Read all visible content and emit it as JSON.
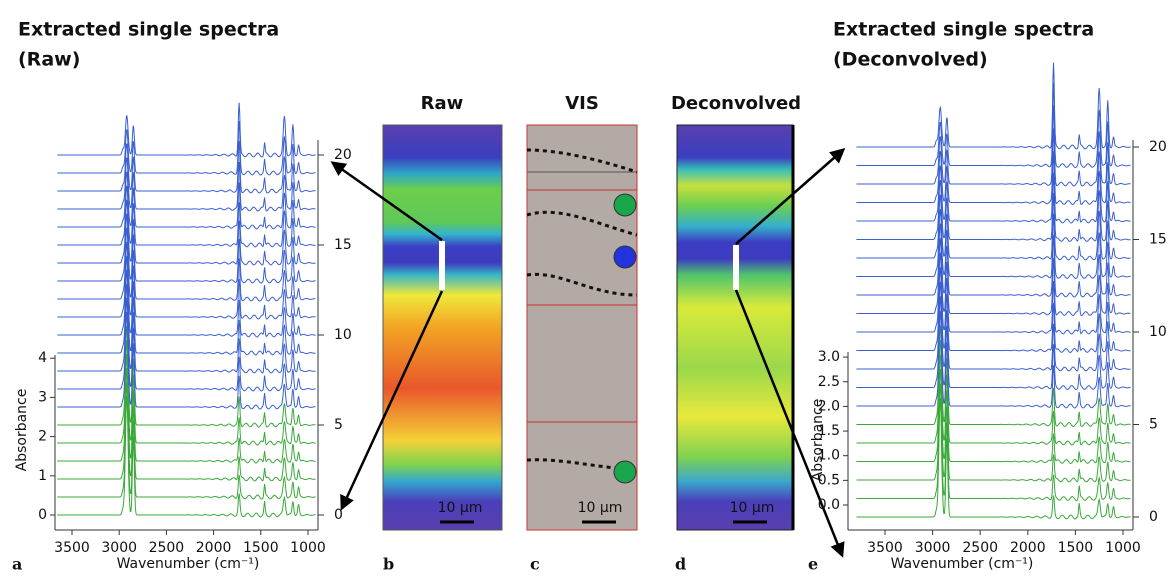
{
  "panels": [
    {
      "letter": "a",
      "title": "Extracted single spectra",
      "subtitle": "(Raw)",
      "x_axis": {
        "label": "Wavenumber (cm⁻¹)",
        "ticks": [
          3500,
          3000,
          2500,
          2000,
          1500,
          1000
        ]
      },
      "y_axis": {
        "label": "Absorbance",
        "ticks": [
          0,
          1,
          2,
          3,
          4
        ]
      },
      "y2_axis": {
        "ticks": [
          0,
          5,
          10,
          15,
          20
        ]
      }
    },
    {
      "letter": "b",
      "title": "Raw",
      "scale_bar": "10 µm"
    },
    {
      "letter": "c",
      "title": "VIS",
      "scale_bar": "10 µm"
    },
    {
      "letter": "d",
      "title": "Deconvolved",
      "scale_bar": "10 µm"
    },
    {
      "letter": "e",
      "title": "Extracted single spectra",
      "subtitle": "(Deconvolved)",
      "x_axis": {
        "label": "Wavenumber (cm⁻¹)",
        "ticks": [
          3500,
          3000,
          2500,
          2000,
          1500,
          1000
        ]
      },
      "y_axis": {
        "label": "Absorbance",
        "ticks": [
          {
            "value": 0,
            "label": "0.0"
          },
          0.5,
          {
            "value": 1,
            "label": "1.0"
          },
          1.5,
          {
            "value": 2,
            "label": "2.0"
          },
          2.5,
          {
            "value": 3,
            "label": "3.0"
          }
        ]
      },
      "y2_axis": {
        "ticks": [
          0,
          5,
          10,
          15,
          20
        ]
      }
    }
  ]
}
